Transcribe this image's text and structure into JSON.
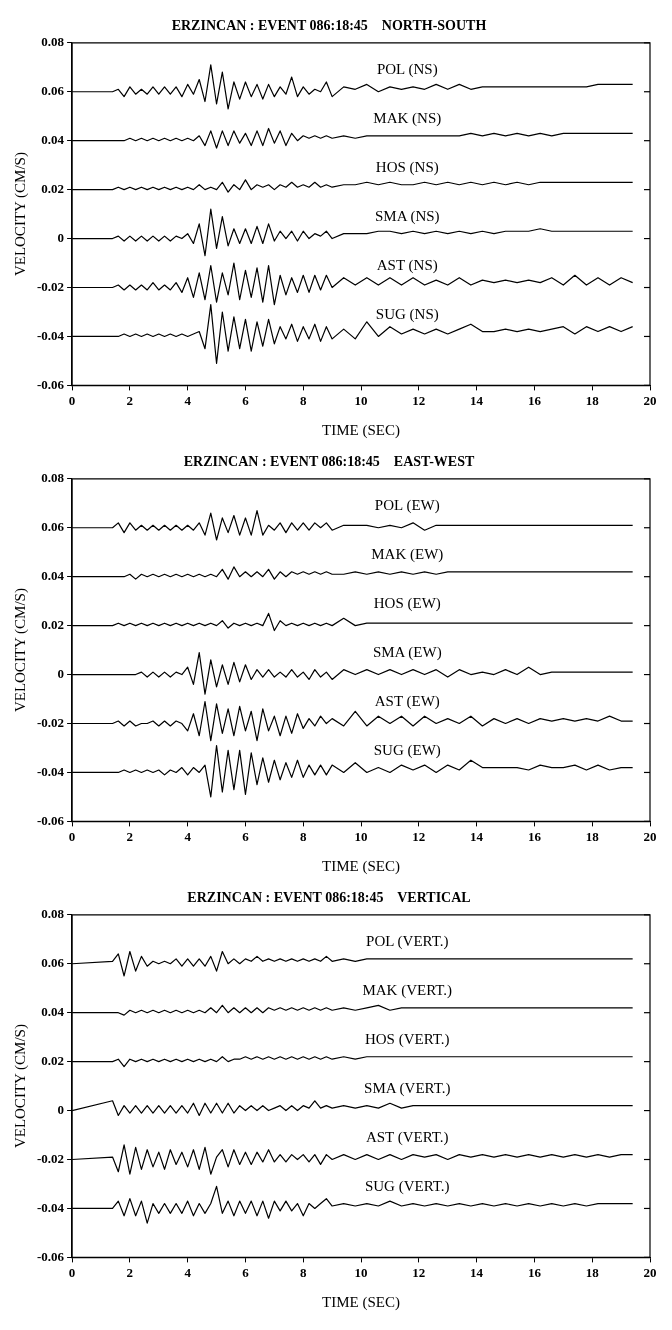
{
  "chart_data": [
    {
      "type": "line",
      "title": "ERZINCAN : EVENT 086:18:45    NORTH-SOUTH",
      "xlabel": "TIME (SEC)",
      "ylabel": "VELOCITY (CM/S)",
      "xlim": [
        0,
        20
      ],
      "xticks": [
        0,
        2,
        4,
        6,
        8,
        10,
        12,
        14,
        16,
        18,
        20
      ],
      "ylim": [
        -0.06,
        0.08
      ],
      "yticks": [
        -0.06,
        -0.04,
        -0.02,
        0,
        0.02,
        0.04,
        0.06,
        0.08
      ],
      "grid": false,
      "legend": false,
      "marker": "none",
      "line_style": "solid",
      "x": [
        0,
        1.4,
        1.6,
        1.8,
        2.0,
        2.2,
        2.4,
        2.6,
        2.8,
        3.0,
        3.2,
        3.4,
        3.6,
        3.8,
        4.0,
        4.2,
        4.4,
        4.6,
        4.8,
        5.0,
        5.2,
        5.4,
        5.6,
        5.8,
        6.0,
        6.2,
        6.4,
        6.6,
        6.8,
        7.0,
        7.2,
        7.4,
        7.6,
        7.8,
        8.0,
        8.2,
        8.4,
        8.6,
        8.8,
        9.0,
        9.4,
        9.8,
        10.2,
        10.6,
        11.0,
        11.4,
        11.8,
        12.2,
        12.6,
        13.0,
        13.4,
        13.8,
        14.2,
        14.6,
        15.0,
        15.4,
        15.8,
        16.2,
        16.6,
        17.0,
        17.4,
        17.8,
        18.2,
        18.6,
        19.0,
        19.4
      ],
      "series": [
        {
          "name": "POL (NS)",
          "color": "#000000",
          "values": [
            0.06,
            0.06,
            0.061,
            0.058,
            0.062,
            0.059,
            0.061,
            0.059,
            0.062,
            0.059,
            0.062,
            0.059,
            0.062,
            0.058,
            0.063,
            0.059,
            0.065,
            0.056,
            0.071,
            0.055,
            0.068,
            0.053,
            0.064,
            0.057,
            0.064,
            0.058,
            0.063,
            0.057,
            0.063,
            0.058,
            0.062,
            0.059,
            0.066,
            0.058,
            0.062,
            0.059,
            0.061,
            0.06,
            0.064,
            0.058,
            0.062,
            0.061,
            0.063,
            0.06,
            0.062,
            0.061,
            0.062,
            0.061,
            0.063,
            0.061,
            0.063,
            0.061,
            0.062,
            0.062,
            0.062,
            0.062,
            0.062,
            0.062,
            0.062,
            0.062,
            0.062,
            0.062,
            0.063,
            0.063,
            0.063,
            0.063
          ]
        },
        {
          "name": "MAK (NS)",
          "color": "#000000",
          "values": [
            0.04,
            0.04,
            0.04,
            0.04,
            0.041,
            0.04,
            0.041,
            0.04,
            0.041,
            0.04,
            0.041,
            0.04,
            0.041,
            0.04,
            0.041,
            0.04,
            0.042,
            0.038,
            0.044,
            0.037,
            0.044,
            0.038,
            0.044,
            0.039,
            0.043,
            0.038,
            0.044,
            0.038,
            0.045,
            0.039,
            0.044,
            0.038,
            0.043,
            0.04,
            0.042,
            0.041,
            0.042,
            0.041,
            0.042,
            0.041,
            0.042,
            0.041,
            0.042,
            0.042,
            0.042,
            0.042,
            0.042,
            0.042,
            0.042,
            0.042,
            0.042,
            0.043,
            0.042,
            0.043,
            0.042,
            0.043,
            0.042,
            0.043,
            0.042,
            0.043,
            0.043,
            0.043,
            0.043,
            0.043,
            0.043,
            0.043
          ]
        },
        {
          "name": "HOS (NS)",
          "color": "#000000",
          "values": [
            0.02,
            0.02,
            0.021,
            0.02,
            0.021,
            0.02,
            0.021,
            0.02,
            0.021,
            0.02,
            0.021,
            0.02,
            0.021,
            0.02,
            0.021,
            0.02,
            0.022,
            0.02,
            0.021,
            0.02,
            0.023,
            0.019,
            0.022,
            0.02,
            0.024,
            0.02,
            0.022,
            0.021,
            0.022,
            0.02,
            0.022,
            0.021,
            0.023,
            0.021,
            0.022,
            0.021,
            0.023,
            0.021,
            0.022,
            0.021,
            0.022,
            0.022,
            0.023,
            0.022,
            0.023,
            0.022,
            0.022,
            0.023,
            0.022,
            0.023,
            0.022,
            0.023,
            0.022,
            0.023,
            0.022,
            0.023,
            0.022,
            0.023,
            0.023,
            0.023,
            0.023,
            0.023,
            0.023,
            0.023,
            0.023,
            0.023
          ]
        },
        {
          "name": "SMA (NS)",
          "color": "#000000",
          "values": [
            0,
            0,
            0.001,
            -0.001,
            0.001,
            -0.001,
            0.001,
            -0.001,
            0.001,
            -0.001,
            0.001,
            -0.001,
            0.001,
            0,
            0.002,
            -0.002,
            0.006,
            -0.007,
            0.012,
            -0.004,
            0.009,
            -0.003,
            0.004,
            -0.002,
            0.004,
            -0.002,
            0.005,
            -0.002,
            0.006,
            -0.001,
            0.003,
            0,
            0.003,
            -0.001,
            0.003,
            0,
            0.002,
            0.001,
            0.003,
            0,
            0.002,
            0.002,
            0.002,
            0.003,
            0.003,
            0.002,
            0.003,
            0.002,
            0.003,
            0.002,
            0.003,
            0.002,
            0.003,
            0.002,
            0.003,
            0.003,
            0.003,
            0.004,
            0.003,
            0.003,
            0.003,
            0.003,
            0.003,
            0.003,
            0.003,
            0.003
          ]
        },
        {
          "name": "AST (NS)",
          "color": "#000000",
          "values": [
            -0.02,
            -0.02,
            -0.019,
            -0.021,
            -0.019,
            -0.021,
            -0.019,
            -0.021,
            -0.018,
            -0.021,
            -0.019,
            -0.021,
            -0.018,
            -0.022,
            -0.016,
            -0.024,
            -0.014,
            -0.025,
            -0.011,
            -0.026,
            -0.014,
            -0.023,
            -0.01,
            -0.025,
            -0.013,
            -0.024,
            -0.012,
            -0.026,
            -0.011,
            -0.027,
            -0.015,
            -0.023,
            -0.016,
            -0.022,
            -0.015,
            -0.022,
            -0.015,
            -0.021,
            -0.015,
            -0.02,
            -0.016,
            -0.019,
            -0.016,
            -0.019,
            -0.016,
            -0.019,
            -0.016,
            -0.019,
            -0.017,
            -0.019,
            -0.016,
            -0.019,
            -0.017,
            -0.018,
            -0.017,
            -0.018,
            -0.017,
            -0.018,
            -0.016,
            -0.019,
            -0.015,
            -0.019,
            -0.016,
            -0.019,
            -0.016,
            -0.018
          ]
        },
        {
          "name": "SUG (NS)",
          "color": "#000000",
          "values": [
            -0.04,
            -0.04,
            -0.04,
            -0.039,
            -0.04,
            -0.039,
            -0.04,
            -0.039,
            -0.04,
            -0.039,
            -0.04,
            -0.039,
            -0.04,
            -0.039,
            -0.04,
            -0.039,
            -0.038,
            -0.045,
            -0.027,
            -0.051,
            -0.03,
            -0.046,
            -0.032,
            -0.045,
            -0.033,
            -0.046,
            -0.034,
            -0.044,
            -0.033,
            -0.043,
            -0.036,
            -0.041,
            -0.035,
            -0.042,
            -0.036,
            -0.041,
            -0.035,
            -0.042,
            -0.036,
            -0.041,
            -0.037,
            -0.041,
            -0.034,
            -0.04,
            -0.036,
            -0.039,
            -0.037,
            -0.039,
            -0.037,
            -0.039,
            -0.037,
            -0.035,
            -0.038,
            -0.038,
            -0.037,
            -0.038,
            -0.037,
            -0.038,
            -0.037,
            -0.036,
            -0.039,
            -0.036,
            -0.038,
            -0.036,
            -0.038,
            -0.036
          ]
        }
      ]
    },
    {
      "type": "line",
      "title": "ERZINCAN : EVENT 086:18:45    EAST-WEST",
      "xlabel": "TIME (SEC)",
      "ylabel": "VELOCITY (CM/S)",
      "xlim": [
        0,
        20
      ],
      "xticks": [
        0,
        2,
        4,
        6,
        8,
        10,
        12,
        14,
        16,
        18,
        20
      ],
      "ylim": [
        -0.06,
        0.08
      ],
      "yticks": [
        -0.06,
        -0.04,
        -0.02,
        0,
        0.02,
        0.04,
        0.06,
        0.08
      ],
      "grid": false,
      "legend": false,
      "marker": "none",
      "line_style": "solid",
      "x": [
        0,
        1.4,
        1.6,
        1.8,
        2.0,
        2.2,
        2.4,
        2.6,
        2.8,
        3.0,
        3.2,
        3.4,
        3.6,
        3.8,
        4.0,
        4.2,
        4.4,
        4.6,
        4.8,
        5.0,
        5.2,
        5.4,
        5.6,
        5.8,
        6.0,
        6.2,
        6.4,
        6.6,
        6.8,
        7.0,
        7.2,
        7.4,
        7.6,
        7.8,
        8.0,
        8.2,
        8.4,
        8.6,
        8.8,
        9.0,
        9.4,
        9.8,
        10.2,
        10.6,
        11.0,
        11.4,
        11.8,
        12.2,
        12.6,
        13.0,
        13.4,
        13.8,
        14.2,
        14.6,
        15.0,
        15.4,
        15.8,
        16.2,
        16.6,
        17.0,
        17.4,
        17.8,
        18.2,
        18.6,
        19.0,
        19.4
      ],
      "series": [
        {
          "name": "POL (EW)",
          "color": "#000000",
          "values": [
            0.06,
            0.06,
            0.062,
            0.058,
            0.062,
            0.059,
            0.061,
            0.059,
            0.061,
            0.059,
            0.061,
            0.059,
            0.061,
            0.059,
            0.061,
            0.059,
            0.062,
            0.057,
            0.066,
            0.055,
            0.064,
            0.058,
            0.065,
            0.057,
            0.064,
            0.057,
            0.067,
            0.057,
            0.061,
            0.059,
            0.062,
            0.058,
            0.062,
            0.059,
            0.062,
            0.059,
            0.062,
            0.06,
            0.062,
            0.059,
            0.061,
            0.061,
            0.061,
            0.06,
            0.061,
            0.06,
            0.062,
            0.059,
            0.061,
            0.061,
            0.061,
            0.061,
            0.061,
            0.061,
            0.061,
            0.061,
            0.061,
            0.061,
            0.061,
            0.061,
            0.061,
            0.061,
            0.061,
            0.061,
            0.061,
            0.061
          ]
        },
        {
          "name": "MAK (EW)",
          "color": "#000000",
          "values": [
            0.04,
            0.04,
            0.04,
            0.04,
            0.041,
            0.039,
            0.041,
            0.04,
            0.041,
            0.04,
            0.041,
            0.04,
            0.041,
            0.04,
            0.041,
            0.04,
            0.041,
            0.04,
            0.041,
            0.04,
            0.043,
            0.039,
            0.044,
            0.04,
            0.042,
            0.04,
            0.042,
            0.04,
            0.043,
            0.039,
            0.042,
            0.04,
            0.042,
            0.041,
            0.042,
            0.041,
            0.042,
            0.041,
            0.042,
            0.041,
            0.041,
            0.042,
            0.041,
            0.042,
            0.041,
            0.042,
            0.041,
            0.042,
            0.041,
            0.042,
            0.042,
            0.042,
            0.042,
            0.042,
            0.042,
            0.042,
            0.042,
            0.042,
            0.042,
            0.042,
            0.042,
            0.042,
            0.042,
            0.042,
            0.042,
            0.042
          ]
        },
        {
          "name": "HOS (EW)",
          "color": "#000000",
          "values": [
            0.02,
            0.02,
            0.021,
            0.02,
            0.021,
            0.02,
            0.021,
            0.02,
            0.021,
            0.02,
            0.021,
            0.02,
            0.021,
            0.02,
            0.021,
            0.02,
            0.021,
            0.02,
            0.021,
            0.02,
            0.022,
            0.019,
            0.021,
            0.02,
            0.021,
            0.02,
            0.021,
            0.02,
            0.025,
            0.018,
            0.022,
            0.02,
            0.021,
            0.02,
            0.021,
            0.02,
            0.021,
            0.02,
            0.021,
            0.02,
            0.023,
            0.02,
            0.021,
            0.021,
            0.021,
            0.021,
            0.021,
            0.021,
            0.021,
            0.021,
            0.021,
            0.021,
            0.021,
            0.021,
            0.021,
            0.021,
            0.021,
            0.021,
            0.021,
            0.021,
            0.021,
            0.021,
            0.021,
            0.021,
            0.021,
            0.021
          ]
        },
        {
          "name": "SMA (EW)",
          "color": "#000000",
          "values": [
            0,
            0,
            0,
            0,
            0,
            0,
            0.001,
            -0.001,
            0.001,
            -0.001,
            0.001,
            -0.001,
            0.001,
            0,
            0.003,
            -0.004,
            0.009,
            -0.008,
            0.006,
            -0.005,
            0.004,
            -0.004,
            0.005,
            -0.003,
            0.004,
            -0.002,
            0.002,
            -0.001,
            0.002,
            -0.001,
            0.001,
            -0.001,
            0.002,
            -0.001,
            0.001,
            -0.002,
            0.002,
            -0.001,
            0.001,
            -0.002,
            0.002,
            0,
            0.002,
            0,
            0.002,
            0,
            0.002,
            0,
            0.002,
            -0.001,
            0.002,
            0,
            0.001,
            0,
            0.002,
            0,
            0.003,
            0,
            0.001,
            0.001,
            0.001,
            0.001,
            0.001,
            0.001,
            0.001,
            0.001
          ]
        },
        {
          "name": "AST (EW)",
          "color": "#000000",
          "values": [
            -0.02,
            -0.02,
            -0.019,
            -0.021,
            -0.019,
            -0.021,
            -0.02,
            -0.02,
            -0.019,
            -0.021,
            -0.019,
            -0.021,
            -0.019,
            -0.02,
            -0.023,
            -0.016,
            -0.025,
            -0.011,
            -0.027,
            -0.012,
            -0.024,
            -0.014,
            -0.025,
            -0.013,
            -0.023,
            -0.015,
            -0.027,
            -0.014,
            -0.023,
            -0.017,
            -0.025,
            -0.017,
            -0.024,
            -0.016,
            -0.022,
            -0.018,
            -0.021,
            -0.017,
            -0.02,
            -0.018,
            -0.021,
            -0.015,
            -0.021,
            -0.017,
            -0.02,
            -0.017,
            -0.021,
            -0.017,
            -0.02,
            -0.018,
            -0.02,
            -0.017,
            -0.021,
            -0.018,
            -0.02,
            -0.018,
            -0.02,
            -0.018,
            -0.019,
            -0.018,
            -0.019,
            -0.018,
            -0.019,
            -0.017,
            -0.019,
            -0.019
          ]
        },
        {
          "name": "SUG (EW)",
          "color": "#000000",
          "values": [
            -0.04,
            -0.04,
            -0.04,
            -0.039,
            -0.04,
            -0.039,
            -0.04,
            -0.039,
            -0.04,
            -0.039,
            -0.041,
            -0.039,
            -0.04,
            -0.038,
            -0.041,
            -0.038,
            -0.04,
            -0.037,
            -0.05,
            -0.029,
            -0.048,
            -0.031,
            -0.047,
            -0.031,
            -0.049,
            -0.032,
            -0.045,
            -0.034,
            -0.044,
            -0.035,
            -0.043,
            -0.036,
            -0.042,
            -0.035,
            -0.042,
            -0.037,
            -0.041,
            -0.037,
            -0.041,
            -0.037,
            -0.04,
            -0.036,
            -0.04,
            -0.038,
            -0.04,
            -0.037,
            -0.039,
            -0.037,
            -0.04,
            -0.037,
            -0.039,
            -0.035,
            -0.038,
            -0.038,
            -0.038,
            -0.038,
            -0.039,
            -0.037,
            -0.038,
            -0.038,
            -0.037,
            -0.039,
            -0.037,
            -0.039,
            -0.038,
            -0.038
          ]
        }
      ]
    },
    {
      "type": "line",
      "title": "ERZINCAN : EVENT 086:18:45    VERTICAL",
      "xlabel": "TIME (SEC)",
      "ylabel": "VELOCITY (CM/S)",
      "xlim": [
        0,
        20
      ],
      "xticks": [
        0,
        2,
        4,
        6,
        8,
        10,
        12,
        14,
        16,
        18,
        20
      ],
      "ylim": [
        -0.06,
        0.08
      ],
      "yticks": [
        -0.06,
        -0.04,
        -0.02,
        0,
        0.02,
        0.04,
        0.06,
        0.08
      ],
      "grid": false,
      "legend": false,
      "marker": "none",
      "line_style": "solid",
      "x": [
        0,
        1.4,
        1.6,
        1.8,
        2.0,
        2.2,
        2.4,
        2.6,
        2.8,
        3.0,
        3.2,
        3.4,
        3.6,
        3.8,
        4.0,
        4.2,
        4.4,
        4.6,
        4.8,
        5.0,
        5.2,
        5.4,
        5.6,
        5.8,
        6.0,
        6.2,
        6.4,
        6.6,
        6.8,
        7.0,
        7.2,
        7.4,
        7.6,
        7.8,
        8.0,
        8.2,
        8.4,
        8.6,
        8.8,
        9.0,
        9.4,
        9.8,
        10.2,
        10.6,
        11.0,
        11.4,
        11.8,
        12.2,
        12.6,
        13.0,
        13.4,
        13.8,
        14.2,
        14.6,
        15.0,
        15.4,
        15.8,
        16.2,
        16.6,
        17.0,
        17.4,
        17.8,
        18.2,
        18.6,
        19.0,
        19.4
      ],
      "series": [
        {
          "name": "POL (VERT.)",
          "color": "#000000",
          "values": [
            0.06,
            0.061,
            0.064,
            0.055,
            0.065,
            0.057,
            0.063,
            0.059,
            0.061,
            0.06,
            0.061,
            0.06,
            0.062,
            0.059,
            0.062,
            0.059,
            0.062,
            0.059,
            0.063,
            0.057,
            0.065,
            0.06,
            0.062,
            0.06,
            0.062,
            0.061,
            0.063,
            0.061,
            0.062,
            0.061,
            0.062,
            0.061,
            0.062,
            0.061,
            0.062,
            0.061,
            0.062,
            0.061,
            0.063,
            0.061,
            0.062,
            0.061,
            0.062,
            0.062,
            0.062,
            0.062,
            0.062,
            0.062,
            0.062,
            0.062,
            0.062,
            0.062,
            0.062,
            0.062,
            0.062,
            0.062,
            0.062,
            0.062,
            0.062,
            0.062,
            0.062,
            0.062,
            0.062,
            0.062,
            0.062,
            0.062
          ]
        },
        {
          "name": "MAK (VERT.)",
          "color": "#000000",
          "values": [
            0.04,
            0.04,
            0.04,
            0.039,
            0.041,
            0.04,
            0.041,
            0.04,
            0.041,
            0.04,
            0.041,
            0.04,
            0.041,
            0.04,
            0.041,
            0.04,
            0.041,
            0.04,
            0.042,
            0.04,
            0.043,
            0.04,
            0.042,
            0.04,
            0.042,
            0.04,
            0.042,
            0.04,
            0.042,
            0.041,
            0.042,
            0.041,
            0.042,
            0.041,
            0.042,
            0.041,
            0.042,
            0.041,
            0.042,
            0.041,
            0.042,
            0.041,
            0.042,
            0.043,
            0.041,
            0.042,
            0.042,
            0.042,
            0.042,
            0.042,
            0.042,
            0.042,
            0.042,
            0.042,
            0.042,
            0.042,
            0.042,
            0.042,
            0.042,
            0.042,
            0.042,
            0.042,
            0.042,
            0.042,
            0.042,
            0.042
          ]
        },
        {
          "name": "HOS (VERT.)",
          "color": "#000000",
          "values": [
            0.02,
            0.02,
            0.021,
            0.018,
            0.021,
            0.02,
            0.021,
            0.02,
            0.021,
            0.02,
            0.021,
            0.02,
            0.021,
            0.02,
            0.021,
            0.02,
            0.021,
            0.02,
            0.021,
            0.02,
            0.022,
            0.02,
            0.021,
            0.021,
            0.022,
            0.021,
            0.022,
            0.021,
            0.022,
            0.021,
            0.022,
            0.021,
            0.022,
            0.021,
            0.022,
            0.021,
            0.022,
            0.021,
            0.022,
            0.021,
            0.022,
            0.021,
            0.022,
            0.022,
            0.022,
            0.022,
            0.022,
            0.022,
            0.022,
            0.022,
            0.022,
            0.022,
            0.022,
            0.022,
            0.022,
            0.022,
            0.022,
            0.022,
            0.022,
            0.022,
            0.022,
            0.022,
            0.022,
            0.022,
            0.022,
            0.022
          ]
        },
        {
          "name": "SMA (VERT.)",
          "color": "#000000",
          "values": [
            0,
            0.004,
            -0.002,
            0.002,
            -0.001,
            0.002,
            -0.001,
            0.002,
            -0.001,
            0.002,
            -0.001,
            0.002,
            -0.001,
            0.002,
            -0.001,
            0.003,
            -0.002,
            0.003,
            -0.001,
            0.003,
            -0.001,
            0.003,
            -0.001,
            0.002,
            0,
            0.002,
            0,
            0.002,
            0,
            0.001,
            0.002,
            0,
            0.002,
            0,
            0.002,
            0.001,
            0.004,
            0.001,
            0.002,
            0.001,
            0.002,
            0.001,
            0.002,
            0.001,
            0.003,
            0.001,
            0.002,
            0.002,
            0.002,
            0.002,
            0.002,
            0.002,
            0.002,
            0.002,
            0.002,
            0.002,
            0.002,
            0.002,
            0.002,
            0.002,
            0.002,
            0.002,
            0.002,
            0.002,
            0.002,
            0.002
          ]
        },
        {
          "name": "AST (VERT.)",
          "color": "#000000",
          "values": [
            -0.02,
            -0.019,
            -0.025,
            -0.014,
            -0.026,
            -0.015,
            -0.024,
            -0.016,
            -0.023,
            -0.017,
            -0.024,
            -0.016,
            -0.022,
            -0.017,
            -0.023,
            -0.016,
            -0.024,
            -0.015,
            -0.026,
            -0.019,
            -0.016,
            -0.023,
            -0.016,
            -0.022,
            -0.017,
            -0.022,
            -0.017,
            -0.021,
            -0.016,
            -0.021,
            -0.018,
            -0.021,
            -0.018,
            -0.02,
            -0.018,
            -0.021,
            -0.018,
            -0.022,
            -0.018,
            -0.02,
            -0.018,
            -0.02,
            -0.018,
            -0.02,
            -0.018,
            -0.02,
            -0.018,
            -0.019,
            -0.018,
            -0.02,
            -0.018,
            -0.019,
            -0.018,
            -0.019,
            -0.018,
            -0.019,
            -0.018,
            -0.019,
            -0.018,
            -0.019,
            -0.018,
            -0.019,
            -0.018,
            -0.019,
            -0.018,
            -0.018
          ]
        },
        {
          "name": "SUG (VERT.)",
          "color": "#000000",
          "values": [
            -0.04,
            -0.04,
            -0.037,
            -0.043,
            -0.036,
            -0.043,
            -0.037,
            -0.046,
            -0.038,
            -0.042,
            -0.038,
            -0.042,
            -0.038,
            -0.042,
            -0.037,
            -0.043,
            -0.038,
            -0.042,
            -0.038,
            -0.031,
            -0.042,
            -0.037,
            -0.043,
            -0.037,
            -0.042,
            -0.037,
            -0.043,
            -0.037,
            -0.044,
            -0.037,
            -0.041,
            -0.037,
            -0.041,
            -0.038,
            -0.043,
            -0.038,
            -0.04,
            -0.038,
            -0.036,
            -0.039,
            -0.038,
            -0.039,
            -0.038,
            -0.039,
            -0.037,
            -0.039,
            -0.038,
            -0.039,
            -0.038,
            -0.039,
            -0.038,
            -0.039,
            -0.038,
            -0.039,
            -0.038,
            -0.039,
            -0.038,
            -0.039,
            -0.038,
            -0.039,
            -0.038,
            -0.039,
            -0.038,
            -0.038,
            -0.038,
            -0.038
          ]
        }
      ]
    }
  ]
}
